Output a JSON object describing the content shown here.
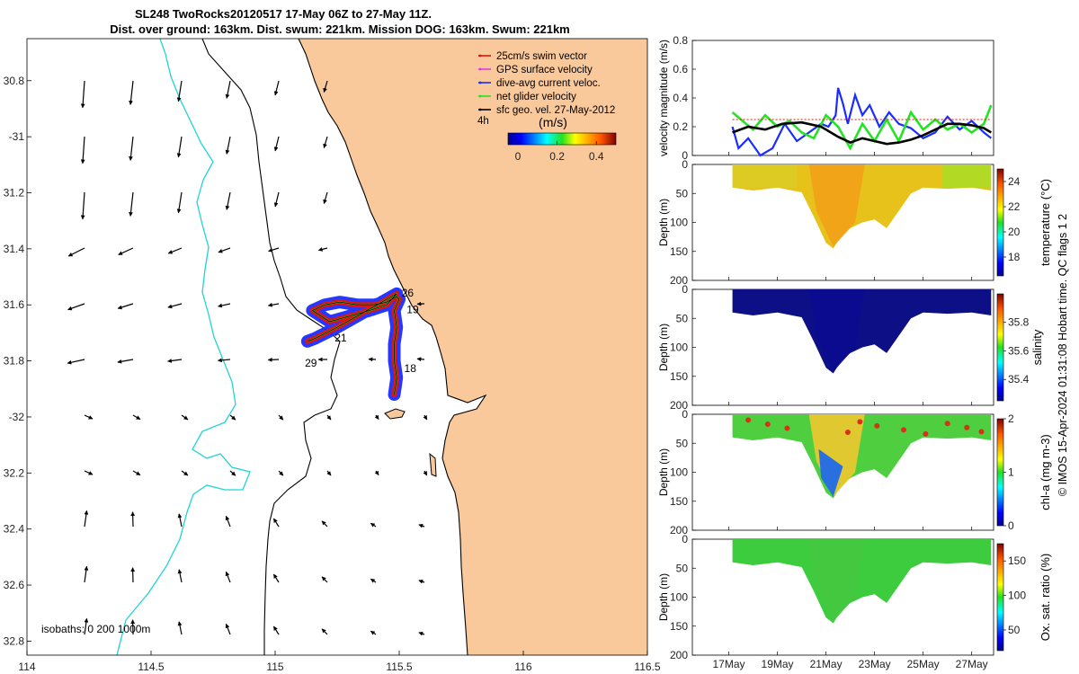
{
  "title": {
    "line1": "SL248 TwoRocks20120517 17-May 06Z to 27-May 11Z.",
    "line2": "Dist. over ground: 163km. Dist. swum: 221km. Mission DOG: 163km. Swum: 221km"
  },
  "side_label": "© IMOS 15-Apr-2024 01:31:08 Hobart time. QC flags 1  2",
  "colors": {
    "land": "#f9c89b",
    "coast": "#000000",
    "isobath_200": "#000000",
    "isobath_1000": "#22d3d3",
    "track_red": "#e0140f",
    "track_blue": "#1a2dff",
    "track_green": "#24e324",
    "track_black": "#000000"
  },
  "chart_data": [
    {
      "type": "map",
      "name": "track-map",
      "xlim": [
        114,
        116.5
      ],
      "ylim": [
        -32.85,
        -30.65
      ],
      "x_ticks": [
        114,
        114.5,
        115,
        115.5,
        116,
        116.5
      ],
      "x_tick_labels": [
        "114",
        "114.5",
        "115",
        "115.5",
        "116",
        "116.5"
      ],
      "y_ticks": [
        -30.8,
        -31,
        -31.2,
        -31.4,
        -31.6,
        -31.8,
        -32,
        -32.2,
        -32.4,
        -32.6,
        -32.8
      ],
      "y_tick_labels": [
        "30.8",
        "-31",
        "31.2",
        "31.4",
        "31.6",
        "31.8",
        "-32",
        "32.2",
        "32.4",
        "32.6",
        "32.8"
      ],
      "legend": {
        "placement": "top-right",
        "entries": [
          {
            "label": "25cm/s swim vector",
            "color": "#e0140f"
          },
          {
            "label": "GPS surface velocity",
            "color": "#e53be5"
          },
          {
            "label": "dive-avg current veloc.",
            "color": "#1a2dff"
          },
          {
            "label": "net glider velocity",
            "color": "#24e324"
          },
          {
            "label": "sfc geo. vel. 27-May-2012",
            "color": "#000000"
          }
        ]
      },
      "time_tag": "4h",
      "colorbar": {
        "label": "(m/s)",
        "ticks": [
          0,
          0.2,
          0.4
        ],
        "tick_labels": [
          "0",
          "0.2",
          "0.4"
        ],
        "range": [
          -0.05,
          0.5
        ]
      },
      "isobaths_label": "isobaths: 0   200  1000m",
      "track_day_labels": [
        {
          "text": "26",
          "lon": 115.51,
          "lat": -31.57
        },
        {
          "text": "19",
          "lon": 115.53,
          "lat": -31.63
        },
        {
          "text": "21",
          "lon": 115.24,
          "lat": -31.73
        },
        {
          "text": "29",
          "lon": 115.12,
          "lat": -31.82
        },
        {
          "text": "18",
          "lon": 115.52,
          "lat": -31.84
        }
      ]
    },
    {
      "type": "line",
      "name": "velocity-magnitude",
      "ylabel": "velocity magnitude (m/s)",
      "ylim": [
        0,
        0.8
      ],
      "y_ticks": [
        0,
        0.2,
        0.4,
        0.6,
        0.8
      ],
      "x_range_days": [
        15.5,
        27.9
      ],
      "series": [
        {
          "color": "#1a2dff",
          "x": [
            17.15,
            17.4,
            17.8,
            18.3,
            18.8,
            19.3,
            19.8,
            20.3,
            20.8,
            21.1,
            21.4,
            21.5,
            21.7,
            21.9,
            22.2,
            22.5,
            22.8,
            23.2,
            23.6,
            24.0,
            24.5,
            25.0,
            25.5,
            26.0,
            26.5,
            27.0,
            27.5,
            27.8
          ],
          "y": [
            0.2,
            0.05,
            0.12,
            0.0,
            0.05,
            0.22,
            0.1,
            0.16,
            0.22,
            0.2,
            0.28,
            0.47,
            0.36,
            0.22,
            0.42,
            0.28,
            0.35,
            0.2,
            0.3,
            0.22,
            0.19,
            0.12,
            0.16,
            0.27,
            0.18,
            0.24,
            0.16,
            0.12
          ]
        },
        {
          "color": "#24e324",
          "x": [
            17.15,
            17.5,
            18.0,
            18.5,
            19.0,
            19.5,
            20.0,
            20.5,
            21.0,
            21.5,
            22.0,
            22.5,
            23.0,
            23.5,
            24.0,
            24.5,
            25.0,
            25.5,
            26.0,
            26.5,
            27.0,
            27.5,
            27.8
          ],
          "y": [
            0.3,
            0.25,
            0.18,
            0.28,
            0.2,
            0.24,
            0.16,
            0.12,
            0.28,
            0.2,
            0.05,
            0.22,
            0.1,
            0.25,
            0.1,
            0.3,
            0.18,
            0.25,
            0.18,
            0.22,
            0.16,
            0.22,
            0.35
          ]
        },
        {
          "color": "#000000",
          "x": [
            17.15,
            17.8,
            18.5,
            19.2,
            20.0,
            20.8,
            21.5,
            22.0,
            22.5,
            23.0,
            23.5,
            24.0,
            24.5,
            25.0,
            25.5,
            26.0,
            26.5,
            27.0,
            27.5,
            27.8
          ],
          "y": [
            0.16,
            0.2,
            0.18,
            0.22,
            0.23,
            0.2,
            0.13,
            0.09,
            0.12,
            0.1,
            0.08,
            0.09,
            0.11,
            0.14,
            0.18,
            0.22,
            0.22,
            0.21,
            0.19,
            0.16
          ]
        },
        {
          "color": "#e0140f",
          "x": [
            17.15,
            27.8
          ],
          "y": [
            0.25,
            0.25
          ]
        }
      ]
    },
    {
      "type": "heatmap",
      "name": "temperature-section",
      "cbar_label": "temperature (°C)",
      "cbar_ticks": [
        18,
        20,
        22,
        24
      ],
      "cbar_range": [
        16.5,
        25
      ],
      "ylim": [
        0,
        200
      ],
      "depth_profile": {
        "days": [
          17.15,
          18,
          19,
          20,
          20.5,
          21,
          21.3,
          21.6,
          22,
          22.5,
          23,
          23.5,
          24,
          24.5,
          25,
          26,
          27,
          27.8
        ],
        "max_depth": [
          40,
          45,
          40,
          48,
          90,
          135,
          145,
          125,
          110,
          100,
          95,
          110,
          80,
          50,
          40,
          42,
          40,
          45
        ]
      }
    },
    {
      "type": "heatmap",
      "name": "salinity-section",
      "cbar_label": "salinity",
      "cbar_ticks": [
        35.4,
        35.6,
        35.8
      ],
      "cbar_range": [
        35.25,
        36.0
      ]
    },
    {
      "type": "heatmap",
      "name": "chla-section",
      "cbar_label": "chl-a (mg m-3)",
      "cbar_ticks": [
        0,
        1,
        2
      ],
      "cbar_range": [
        0,
        2
      ]
    },
    {
      "type": "heatmap",
      "name": "oxygen-section",
      "cbar_label": "Ox. sat. ratio (%)",
      "cbar_ticks": [
        50,
        100,
        150
      ],
      "cbar_range": [
        20,
        175
      ]
    }
  ],
  "sections": {
    "ylabel": "Depth (m)",
    "y_ticks": [
      0,
      50,
      100,
      150,
      200
    ],
    "x_ticks": [
      17,
      19,
      21,
      23,
      25,
      27
    ],
    "x_tick_labels": [
      "17May",
      "19May",
      "21May",
      "23May",
      "25May",
      "27May"
    ],
    "x_range_days": [
      15.5,
      27.9
    ]
  }
}
